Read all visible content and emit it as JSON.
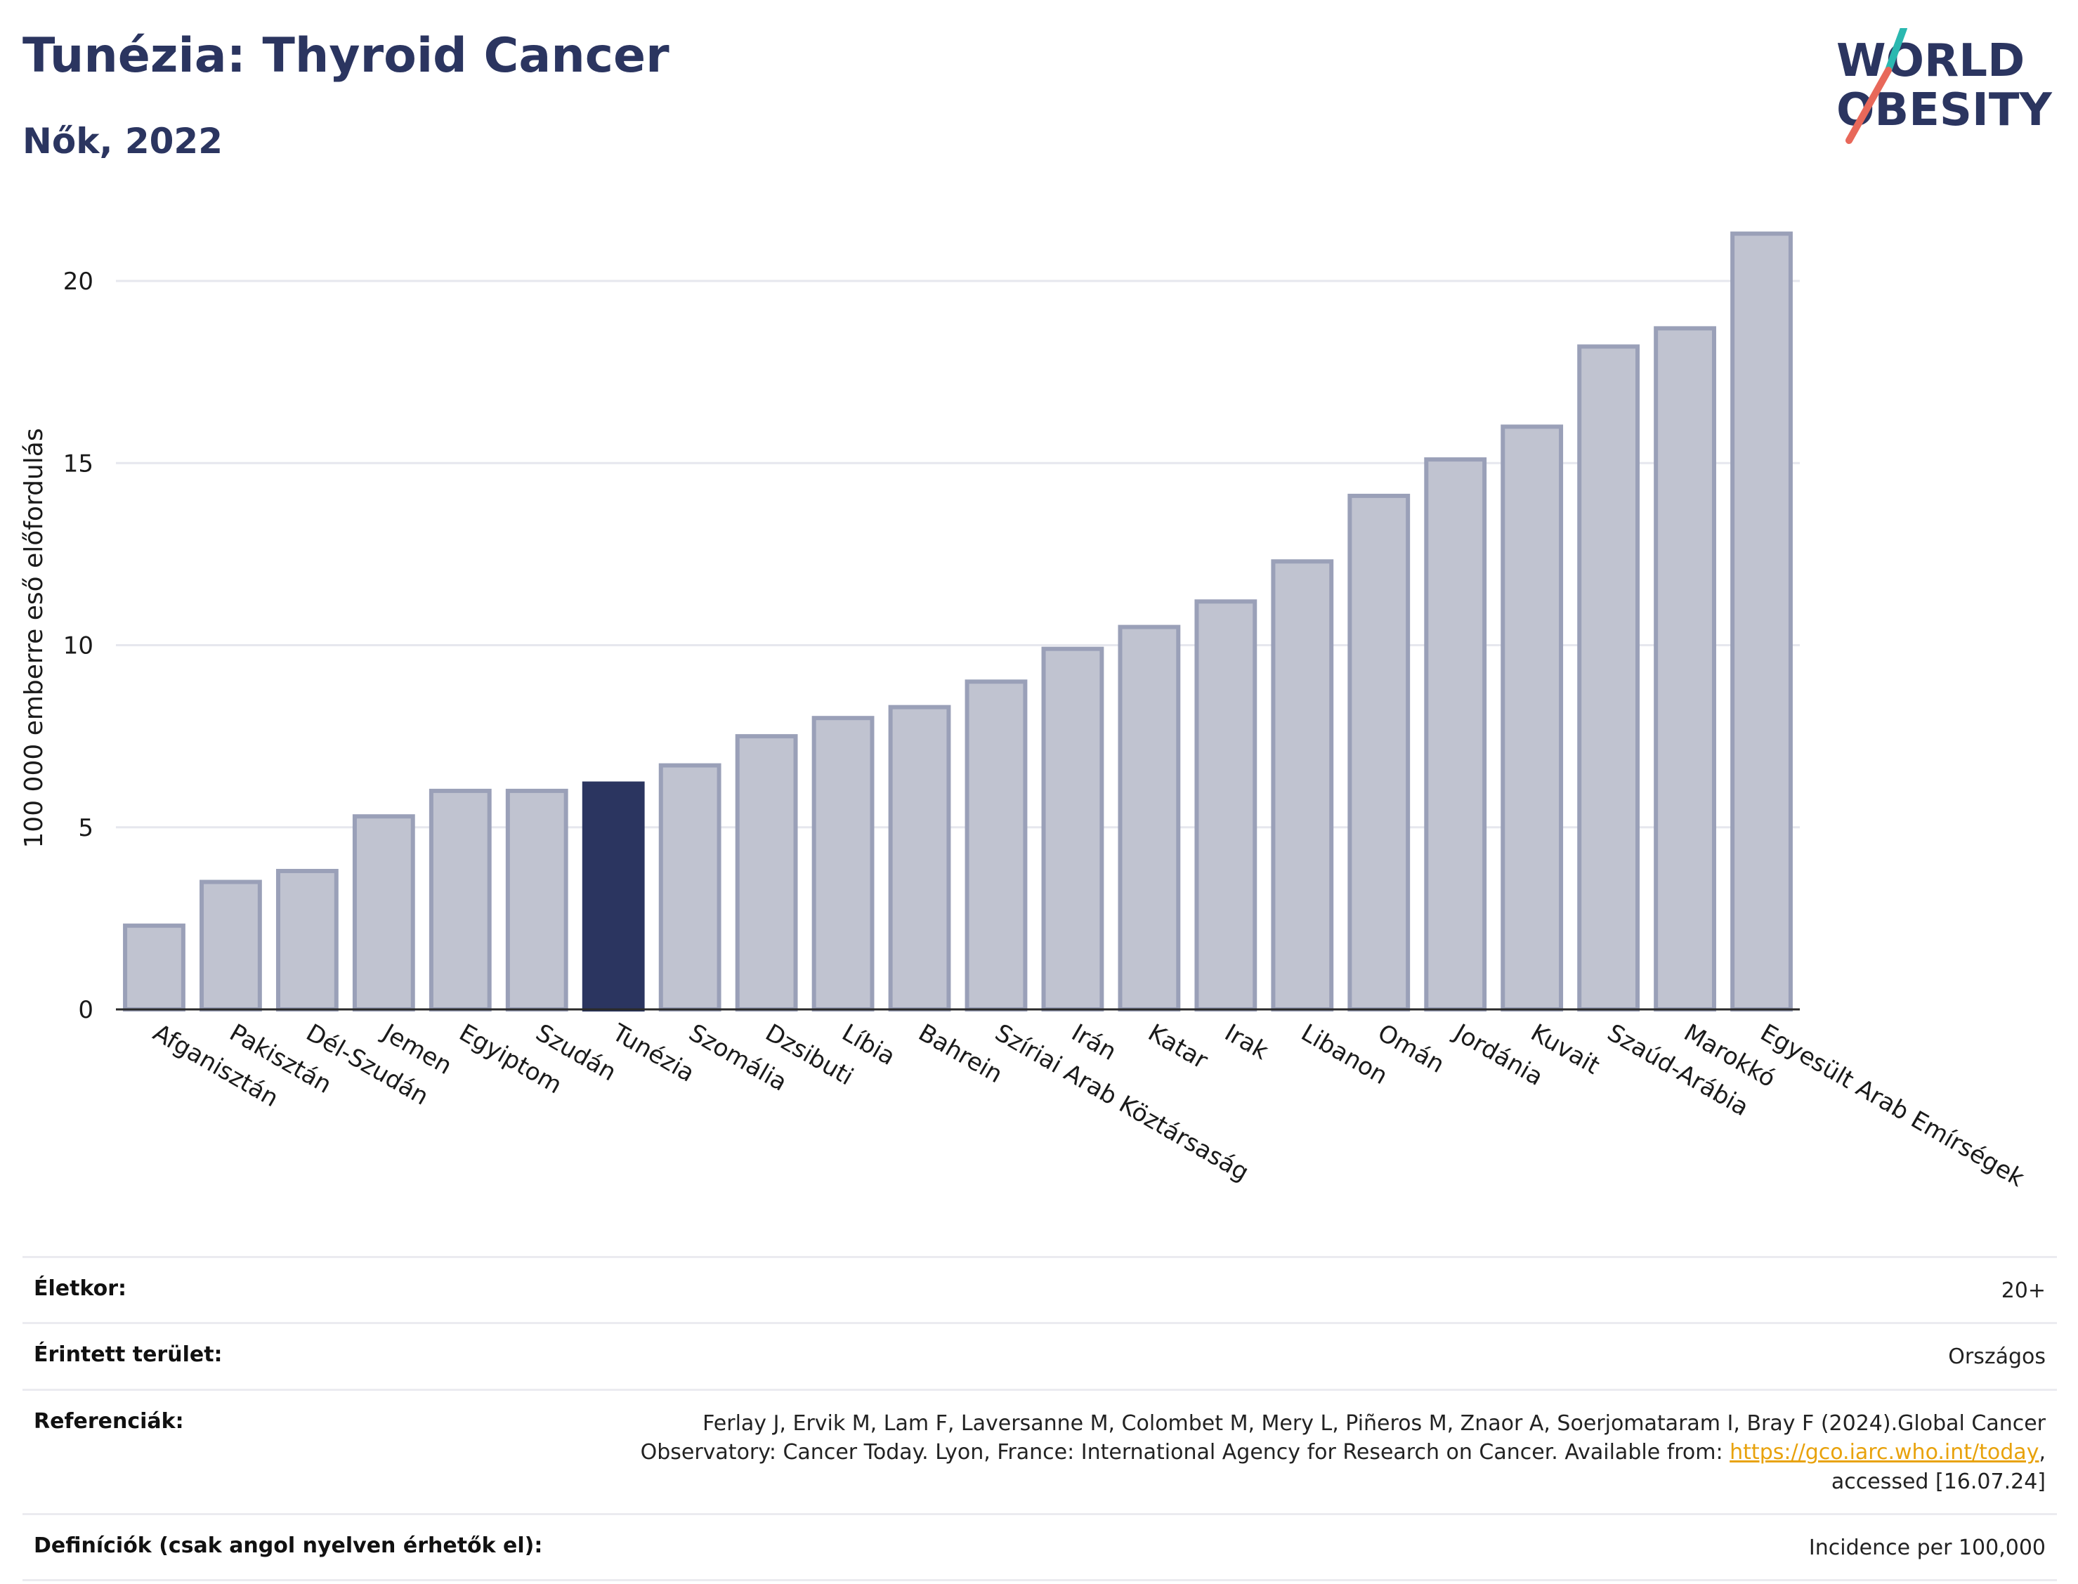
{
  "header": {
    "title": "Tunézia: Thyroid Cancer",
    "subtitle": "Nők, 2022"
  },
  "logo": {
    "line1": "WORLD",
    "line2": "OBESITY",
    "colors": {
      "text": "#2b3560",
      "slash_top": "#2bb8b0",
      "slash_bottom": "#e8685a"
    }
  },
  "chart_data": {
    "type": "bar",
    "ylabel": "100 000 emberre eső előfordulás",
    "xlabel": "",
    "ylim": [
      0,
      22
    ],
    "yticks": [
      0,
      5,
      10,
      15,
      20
    ],
    "grid": true,
    "highlight": "Tunézia",
    "colors": {
      "bar": "#c0c3d0",
      "bar_border": "#9aa0b8",
      "highlight": "#2b3560",
      "grid": "#e6e7ee"
    },
    "categories": [
      "Afganisztán",
      "Pakisztán",
      "Dél-Szudán",
      "Jemen",
      "Egyiptom",
      "Szudán",
      "Tunézia",
      "Szomália",
      "Dzsibuti",
      "Líbia",
      "Bahrein",
      "Szíriai Arab Köztársaság",
      "Irán",
      "Katar",
      "Irak",
      "Libanon",
      "Omán",
      "Jordánia",
      "Kuvait",
      "Szaúd-Arábia",
      "Marokkó",
      "Egyesült Arab Emírségek"
    ],
    "values": [
      2.3,
      3.5,
      3.8,
      5.3,
      6.0,
      6.0,
      6.2,
      6.7,
      7.5,
      8.0,
      8.3,
      9.0,
      9.9,
      10.5,
      11.2,
      12.3,
      14.1,
      15.1,
      16.0,
      18.2,
      18.7,
      21.3
    ]
  },
  "meta": {
    "rows": [
      {
        "label": "Életkor:",
        "value": "20+"
      },
      {
        "label": "Érintett terület:",
        "value": "Országos"
      },
      {
        "label": "Referenciák:",
        "value_part1": "Ferlay J, Ervik M, Lam F, Laversanne M, Colombet M, Mery L, Piñeros M, Znaor A, Soerjomataram I, Bray F (2024).Global Cancer Observatory: Cancer Today. Lyon, France: International Agency for Research on Cancer. Available from:",
        "link": "https://gco.iarc.who.int/today",
        "value_part2": ", accessed [16.07.24]"
      },
      {
        "label": "Definíciók (csak angol nyelven érhetők el):",
        "value": "Incidence per 100,000"
      }
    ]
  }
}
